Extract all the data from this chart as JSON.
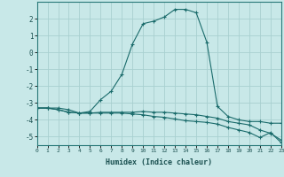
{
  "xlabel": "Humidex (Indice chaleur)",
  "bg_color": "#c8e8e8",
  "line_color": "#1a6b6b",
  "grid_color": "#a8d0d0",
  "x": [
    0,
    1,
    2,
    3,
    4,
    5,
    6,
    7,
    8,
    9,
    10,
    11,
    12,
    13,
    14,
    15,
    16,
    17,
    18,
    19,
    20,
    21,
    22,
    23
  ],
  "line1": [
    -3.3,
    -3.3,
    -3.3,
    -3.4,
    -3.6,
    -3.5,
    -2.8,
    -2.3,
    -1.3,
    0.5,
    1.7,
    1.85,
    2.1,
    2.55,
    2.55,
    2.35,
    0.6,
    -3.2,
    -3.8,
    -4.0,
    -4.1,
    -4.1,
    -4.2,
    -4.2
  ],
  "line2": [
    -3.3,
    -3.3,
    -3.4,
    -3.55,
    -3.6,
    -3.6,
    -3.55,
    -3.55,
    -3.55,
    -3.55,
    -3.5,
    -3.55,
    -3.55,
    -3.6,
    -3.65,
    -3.7,
    -3.8,
    -3.9,
    -4.1,
    -4.2,
    -4.3,
    -4.6,
    -4.8,
    -5.2
  ],
  "line3": [
    -3.3,
    -3.3,
    -3.4,
    -3.55,
    -3.6,
    -3.6,
    -3.6,
    -3.6,
    -3.6,
    -3.65,
    -3.7,
    -3.8,
    -3.85,
    -3.95,
    -4.05,
    -4.1,
    -4.15,
    -4.25,
    -4.45,
    -4.6,
    -4.75,
    -5.05,
    -4.75,
    -5.35
  ],
  "xlim": [
    0,
    23
  ],
  "ylim": [
    -5.5,
    3.0
  ],
  "yticks": [
    -5,
    -4,
    -3,
    -2,
    -1,
    0,
    1,
    2
  ],
  "xticks": [
    0,
    1,
    2,
    3,
    4,
    5,
    6,
    7,
    8,
    9,
    10,
    11,
    12,
    13,
    14,
    15,
    16,
    17,
    18,
    19,
    20,
    21,
    22,
    23
  ]
}
